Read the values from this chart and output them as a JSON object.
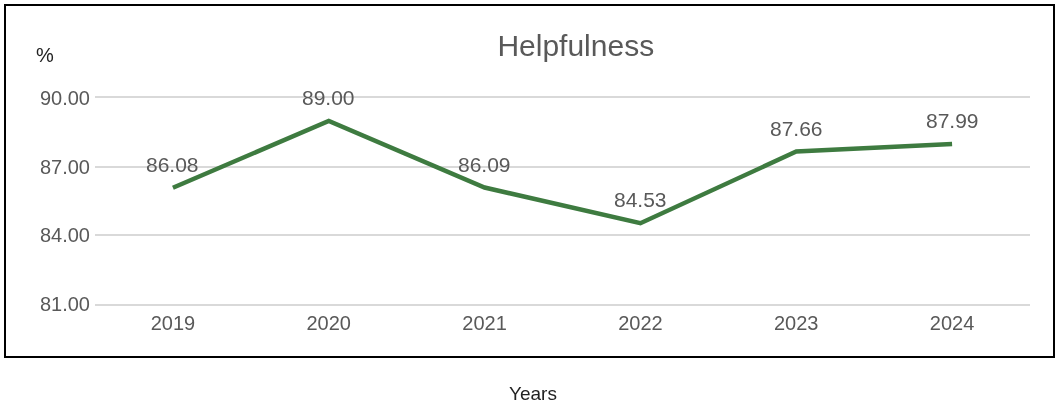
{
  "chart_data": {
    "type": "line",
    "title": "Helpfulness",
    "xlabel": "Years",
    "ylabel": "%",
    "categories": [
      "2019",
      "2020",
      "2021",
      "2022",
      "2023",
      "2024"
    ],
    "series": [
      {
        "color": "#3e7b40",
        "values": [
          86.08,
          89.0,
          86.09,
          84.53,
          87.66,
          87.99
        ],
        "value_labels": [
          "86.08",
          "89.00",
          "86.09",
          "84.53",
          "87.66",
          "87.99"
        ]
      }
    ],
    "ylim": [
      81,
      90
    ],
    "yticks": [
      {
        "value": 81,
        "label": "81.00"
      },
      {
        "value": 84,
        "label": "84.00"
      },
      {
        "value": 87,
        "label": "87.00"
      },
      {
        "value": 90,
        "label": "90.00"
      }
    ],
    "grid": "y",
    "marker": "none",
    "line_style": "solid"
  }
}
